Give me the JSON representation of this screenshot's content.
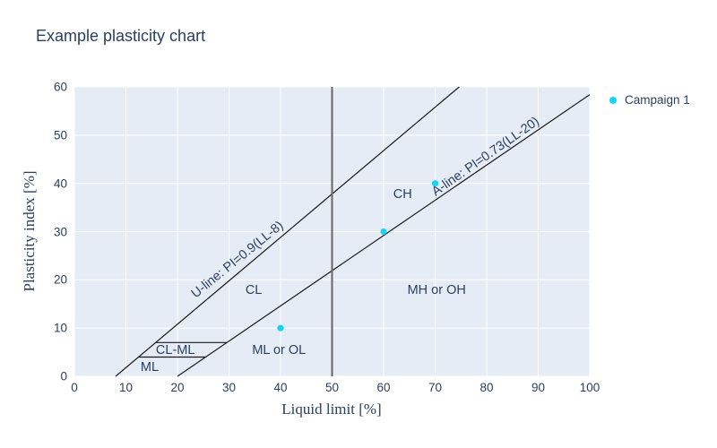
{
  "chart_data": {
    "type": "scatter",
    "title": "Example plasticity chart",
    "xlabel": "Liquid limit [%]",
    "ylabel": "Plasticity index [%]",
    "xlim": [
      0,
      100
    ],
    "ylim": [
      0,
      60
    ],
    "xticks": [
      0,
      10,
      20,
      30,
      40,
      50,
      60,
      70,
      80,
      90,
      100
    ],
    "yticks": [
      0,
      10,
      20,
      30,
      40,
      50,
      60
    ],
    "grid": "on",
    "plot_bg_color": "#e5ecf6",
    "grid_color": "#ffffff",
    "series": [
      {
        "name": "Campaign 1",
        "color": "#19d3f3",
        "marker": "circle",
        "points": [
          [
            40,
            10
          ],
          [
            60,
            30
          ],
          [
            70,
            40
          ]
        ]
      }
    ],
    "lines": [
      {
        "name": "u-line",
        "equation": "PI=0.9(LL-8)",
        "points": [
          [
            8,
            0
          ],
          [
            74.67,
            60
          ]
        ],
        "color": "#1a1a1a",
        "width": 1.2
      },
      {
        "name": "a-line",
        "equation": "PI=0.73(LL-20)",
        "points": [
          [
            20,
            0
          ],
          [
            100,
            58.4
          ]
        ],
        "color": "#1a1a1a",
        "width": 1.2
      },
      {
        "name": "ll50-line",
        "equation": "LL=50",
        "points": [
          [
            50,
            0
          ],
          [
            50,
            60
          ]
        ],
        "color": "#666666",
        "width": 2
      },
      {
        "name": "clml-upper-line",
        "equation": "PI=7",
        "points": [
          [
            15.78,
            7
          ],
          [
            29.59,
            7
          ]
        ],
        "color": "#1a1a1a",
        "width": 1.2
      },
      {
        "name": "clml-lower-line",
        "equation": "PI=4",
        "points": [
          [
            12.44,
            4
          ],
          [
            25.48,
            4
          ]
        ],
        "color": "#1a1a1a",
        "width": 1.2
      }
    ],
    "annotations": [
      {
        "name": "u-line-label",
        "text": "U-line: PI=0.9(LL-8)",
        "x": 31.7,
        "y": 24.1,
        "rotation": -39
      },
      {
        "name": "a-line-label",
        "text": "A-line: PI=0.73(LL-20)",
        "x": 79.8,
        "y": 45.5,
        "rotation": -35
      },
      {
        "name": "zone-ch",
        "text": "CH",
        "x": 63.7,
        "y": 37.7,
        "rotation": 0
      },
      {
        "name": "zone-cl",
        "text": "CL",
        "x": 34.8,
        "y": 17.8,
        "rotation": 0
      },
      {
        "name": "zone-mh-or-oh",
        "text": "MH or OH",
        "x": 70.3,
        "y": 17.8,
        "rotation": 0
      },
      {
        "name": "zone-ml-or-ol",
        "text": "ML or OL",
        "x": 39.7,
        "y": 5.3,
        "rotation": 0
      },
      {
        "name": "zone-cl-ml",
        "text": "CL-ML",
        "x": 19.6,
        "y": 5.3,
        "rotation": 0
      },
      {
        "name": "zone-ml",
        "text": "ML",
        "x": 14.6,
        "y": 1.8,
        "rotation": 0
      }
    ],
    "legend": {
      "position": "top-right-outside",
      "entries": [
        {
          "label": "Campaign 1",
          "color": "#19d3f3"
        }
      ]
    },
    "text_color": "#2a3f5f"
  }
}
